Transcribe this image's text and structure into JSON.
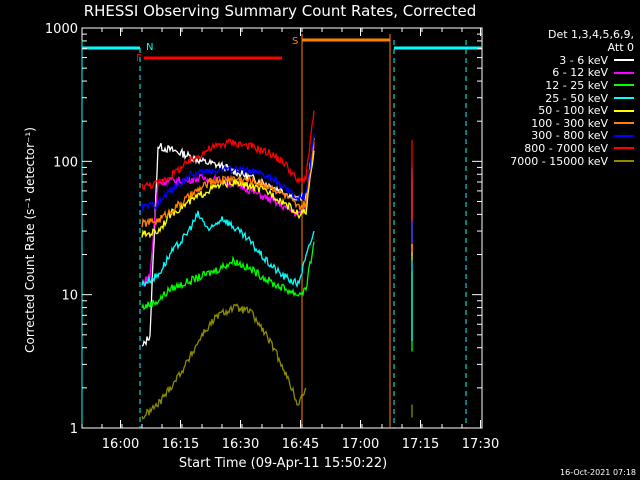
{
  "chart_data": {
    "type": "line",
    "title": "RHESSI Observing Summary Count Rates, Corrected",
    "ylabel": "Corrected Count Rate (s⁻¹ detector⁻¹)",
    "xlabel": "Start Time (09-Apr-11 15:50:22)",
    "yscale": "log",
    "ylim": [
      1,
      1000
    ],
    "xlim_minutes_after_1550": [
      0,
      100
    ],
    "x_ticks": [
      "16:00",
      "16:15",
      "16:30",
      "16:45",
      "17:00",
      "17:15",
      "17:30"
    ],
    "x_tick_minutes": [
      9.63,
      24.63,
      39.63,
      54.63,
      69.63,
      84.63,
      99.63
    ],
    "y_ticks": [
      "1",
      "10",
      "100",
      "1000"
    ],
    "y_tick_values": [
      1,
      10,
      100,
      1000
    ],
    "legend_header": [
      "Det 1,3,4,5,6,9,",
      "Att 0"
    ],
    "series": [
      {
        "name": "3 - 6 keV",
        "color": "#ffffff",
        "x": [
          15,
          17,
          19,
          25,
          30,
          35,
          40,
          45,
          51,
          54,
          56,
          58
        ],
        "y": [
          4,
          5,
          130,
          115,
          100,
          92,
          80,
          70,
          58,
          52,
          55,
          150
        ]
      },
      {
        "name": "6 - 12 keV",
        "color": "#ff00ff",
        "x": [
          15,
          17,
          19,
          25,
          30,
          35,
          40,
          45,
          51,
          54,
          56,
          58
        ],
        "y": [
          12,
          14,
          70,
          72,
          75,
          72,
          65,
          55,
          45,
          40,
          45,
          130
        ]
      },
      {
        "name": "12 - 25 keV",
        "color": "#00ff00",
        "x": [
          15,
          19,
          22,
          28,
          33,
          38,
          43,
          48,
          51,
          54,
          56,
          58
        ],
        "y": [
          8,
          9,
          11,
          13,
          15,
          18,
          15,
          12,
          11,
          10,
          11,
          25
        ]
      },
      {
        "name": "25 - 50 keV",
        "color": "#00ffff",
        "x": [
          15,
          19,
          22,
          26,
          29,
          32,
          35,
          38,
          42,
          46,
          50,
          54,
          58
        ],
        "y": [
          12,
          14,
          20,
          28,
          40,
          30,
          38,
          32,
          25,
          18,
          14,
          12,
          30
        ]
      },
      {
        "name": "50 - 100 keV",
        "color": "#ffff00",
        "x": [
          15,
          19,
          22,
          27,
          32,
          37,
          42,
          47,
          51,
          54,
          56,
          58
        ],
        "y": [
          28,
          30,
          40,
          50,
          62,
          70,
          65,
          58,
          48,
          40,
          42,
          120
        ]
      },
      {
        "name": "100 - 300 keV",
        "color": "#ff8000",
        "x": [
          15,
          19,
          22,
          27,
          32,
          37,
          42,
          47,
          51,
          54,
          56,
          58
        ],
        "y": [
          34,
          36,
          42,
          55,
          70,
          75,
          72,
          65,
          55,
          45,
          48,
          140
        ]
      },
      {
        "name": "300 - 800 keV",
        "color": "#0000ff",
        "x": [
          15,
          19,
          22,
          27,
          32,
          37,
          42,
          47,
          51,
          54,
          56,
          58
        ],
        "y": [
          45,
          48,
          60,
          78,
          85,
          88,
          84,
          76,
          62,
          52,
          55,
          160
        ]
      },
      {
        "name": "800 - 7000 keV",
        "color": "#ff0000",
        "x": [
          15,
          19,
          22,
          27,
          32,
          37,
          42,
          47,
          51,
          54,
          56,
          58
        ],
        "y": [
          65,
          68,
          78,
          100,
          125,
          140,
          130,
          115,
          95,
          70,
          75,
          240
        ]
      },
      {
        "name": "7000 - 15000 keV",
        "color": "#8b8b00",
        "x": [
          15,
          19,
          22,
          26,
          30,
          34,
          38,
          42,
          46,
          50,
          54,
          56
        ],
        "y": [
          1.2,
          1.5,
          2.0,
          3.0,
          5.0,
          7.0,
          8.0,
          7.5,
          5.0,
          3.0,
          1.5,
          2
        ]
      }
    ],
    "annotations": [
      {
        "label": "N",
        "color": "#00ffff"
      },
      {
        "label": "F",
        "color": "#ff0000"
      },
      {
        "label": "S",
        "color": "#ff8000"
      }
    ]
  },
  "timestamp": "16-Oct-2021 07:18"
}
